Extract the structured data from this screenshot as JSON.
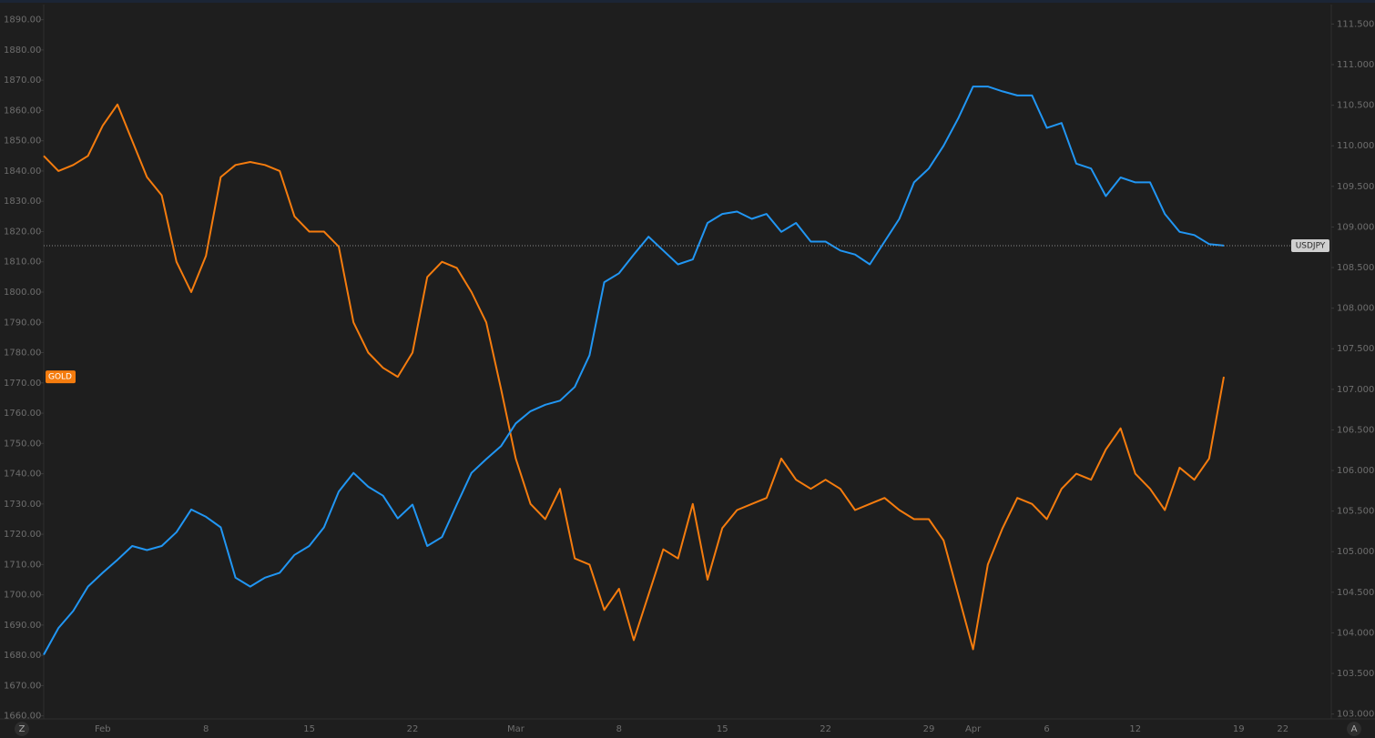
{
  "chart_data": {
    "type": "line",
    "categories": [
      null,
      null,
      null,
      null,
      "Feb",
      null,
      null,
      null,
      null,
      null,
      null,
      "8",
      null,
      null,
      null,
      null,
      null,
      null,
      "15",
      null,
      null,
      null,
      null,
      null,
      null,
      "22",
      null,
      null,
      null,
      null,
      null,
      null,
      "Mar",
      null,
      null,
      null,
      null,
      null,
      null,
      "8",
      null,
      null,
      null,
      null,
      null,
      null,
      "15",
      null,
      null,
      null,
      null,
      null,
      null,
      "22",
      null,
      null,
      null,
      null,
      null,
      null,
      "29",
      null,
      null,
      "Apr",
      null,
      null,
      null,
      null,
      "6",
      null,
      null,
      null,
      null,
      null,
      "12",
      null,
      null,
      null,
      null,
      null,
      null,
      "19",
      null,
      null,
      "22",
      null,
      null,
      null
    ],
    "series": [
      {
        "name": "GOLD",
        "color": "#f57c0e",
        "axis": "y",
        "values": [
          1845,
          1840,
          1842,
          1845,
          1855,
          1862,
          1850,
          1838,
          1832,
          1810,
          1800,
          1812,
          1838,
          1842,
          1843,
          1842,
          1840,
          1825,
          1820,
          1820,
          1815,
          1790,
          1780,
          1775,
          1772,
          1780,
          1805,
          1810,
          1808,
          1800,
          1790,
          1768,
          1745,
          1730,
          1725,
          1735,
          1712,
          1710,
          1695,
          1702,
          1685,
          1700,
          1715,
          1712,
          1730,
          1705,
          1722,
          1728,
          1730,
          1732,
          1745,
          1738,
          1735,
          1738,
          1735,
          1728,
          1730,
          1732,
          1728,
          1725,
          1725,
          1718,
          1700,
          1682,
          1710,
          1722,
          1732,
          1730,
          1725,
          1735,
          1740,
          1738,
          1748,
          1755,
          1740,
          1735,
          1728,
          1742,
          1738,
          1745,
          1772,
          null,
          null,
          null,
          null,
          null,
          null,
          null
        ]
      },
      {
        "name": "USDJPY",
        "color": "#2196f3",
        "axis": "y2",
        "values": [
          103.73,
          104.06,
          104.27,
          104.57,
          104.74,
          104.9,
          105.07,
          105.02,
          105.07,
          105.24,
          105.52,
          105.43,
          105.3,
          104.68,
          104.57,
          104.68,
          104.74,
          104.96,
          105.07,
          105.3,
          105.74,
          105.97,
          105.8,
          105.69,
          105.41,
          105.58,
          105.07,
          105.18,
          105.58,
          105.97,
          106.14,
          106.3,
          106.58,
          106.73,
          106.81,
          106.86,
          107.03,
          107.42,
          108.32,
          108.43,
          108.66,
          108.88,
          108.71,
          108.54,
          108.6,
          109.05,
          109.16,
          109.19,
          109.1,
          109.16,
          108.94,
          109.05,
          108.82,
          108.82,
          108.71,
          108.66,
          108.54,
          108.82,
          109.1,
          109.55,
          109.72,
          110.0,
          110.34,
          110.73,
          110.73,
          110.67,
          110.62,
          110.62,
          110.22,
          110.28,
          109.78,
          109.72,
          109.38,
          109.61,
          109.55,
          109.55,
          109.16,
          108.94,
          108.9,
          108.79,
          108.77,
          null,
          null,
          null,
          null,
          null,
          null,
          null
        ]
      }
    ],
    "ylim": [
      1659,
      1895
    ],
    "yticks": [
      {
        "value": 1660,
        "label": "1660.00"
      },
      {
        "value": 1670,
        "label": "1670.00"
      },
      {
        "value": 1680,
        "label": "1680.00"
      },
      {
        "value": 1690,
        "label": "1690.00"
      },
      {
        "value": 1700,
        "label": "1700.00"
      },
      {
        "value": 1710,
        "label": "1710.00"
      },
      {
        "value": 1720,
        "label": "1720.00"
      },
      {
        "value": 1730,
        "label": "1730.00"
      },
      {
        "value": 1740,
        "label": "1740.00"
      },
      {
        "value": 1750,
        "label": "1750.00"
      },
      {
        "value": 1760,
        "label": "1760.00"
      },
      {
        "value": 1770,
        "label": "1770.00"
      },
      {
        "value": 1780,
        "label": "1780.00"
      },
      {
        "value": 1790,
        "label": "1790.00"
      },
      {
        "value": 1800,
        "label": "1800.00"
      },
      {
        "value": 1810,
        "label": "1810.00"
      },
      {
        "value": 1820,
        "label": "1820.00"
      },
      {
        "value": 1830,
        "label": "1830.00"
      },
      {
        "value": 1840,
        "label": "1840.00"
      },
      {
        "value": 1850,
        "label": "1850.00"
      },
      {
        "value": 1860,
        "label": "1860.00"
      },
      {
        "value": 1870,
        "label": "1870.00"
      },
      {
        "value": 1880,
        "label": "1880.00"
      },
      {
        "value": 1890,
        "label": "1890.00"
      }
    ],
    "y2lim": [
      102.94,
      111.74
    ],
    "y2ticks": [
      {
        "value": 103,
        "label": "103.000"
      },
      {
        "value": 103.5,
        "label": "103.500"
      },
      {
        "value": 104,
        "label": "104.000"
      },
      {
        "value": 104.5,
        "label": "104.500"
      },
      {
        "value": 105,
        "label": "105.000"
      },
      {
        "value": 105.5,
        "label": "105.500"
      },
      {
        "value": 106,
        "label": "106.000"
      },
      {
        "value": 106.5,
        "label": "106.500"
      },
      {
        "value": 107,
        "label": "107.000"
      },
      {
        "value": 107.5,
        "label": "107.500"
      },
      {
        "value": 108,
        "label": "108.000"
      },
      {
        "value": 108.5,
        "label": "108.500"
      },
      {
        "value": 109,
        "label": "109.000"
      },
      {
        "value": 109.5,
        "label": "109.500"
      },
      {
        "value": 110,
        "label": "110.000"
      },
      {
        "value": 110.5,
        "label": "110.500"
      },
      {
        "value": 111,
        "label": "111.000"
      },
      {
        "value": 111.5,
        "label": "111.500"
      }
    ],
    "grid": false
  },
  "controls": [
    "Z",
    "A"
  ]
}
